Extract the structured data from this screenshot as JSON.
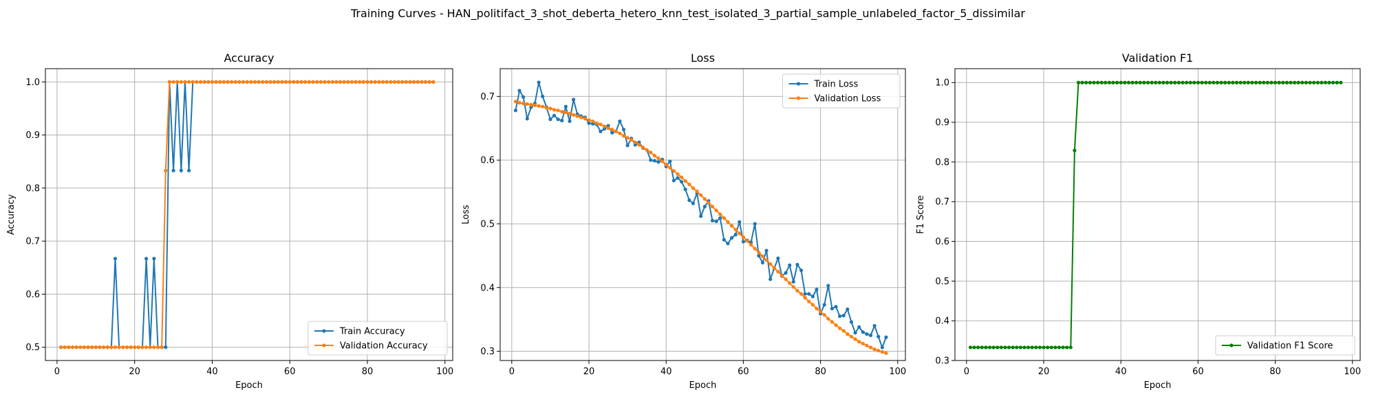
{
  "figure": {
    "suptitle": "Training Curves - HAN_politifact_3_shot_deberta_hetero_knn_test_isolated_3_partial_sample_unlabeled_factor_5_dissimilar"
  },
  "colors": {
    "blue": "#1f77b4",
    "orange": "#ff7f0e",
    "green": "#008000",
    "grid": "#b0b0b0"
  },
  "chart_data": [
    {
      "type": "line",
      "title": "Accuracy",
      "xlabel": "Epoch",
      "ylabel": "Accuracy",
      "xlim": [
        -3,
        102
      ],
      "ylim": [
        0.475,
        1.025
      ],
      "xticks": [
        0,
        20,
        40,
        60,
        80,
        100
      ],
      "yticks": [
        0.5,
        0.6,
        0.7,
        0.8,
        0.9,
        1.0
      ],
      "ytick_labels": [
        "0.5",
        "0.6",
        "0.7",
        "0.8",
        "0.9",
        "1.0"
      ],
      "grid": true,
      "legend_position": "lower-right",
      "x_start": 1,
      "series": [
        {
          "name": "Train Accuracy",
          "color": "#1f77b4",
          "values": [
            0.5,
            0.5,
            0.5,
            0.5,
            0.5,
            0.5,
            0.5,
            0.5,
            0.5,
            0.5,
            0.5,
            0.5,
            0.5,
            0.5,
            0.667,
            0.5,
            0.5,
            0.5,
            0.5,
            0.5,
            0.5,
            0.5,
            0.667,
            0.5,
            0.667,
            0.5,
            0.5,
            0.5,
            1.0,
            0.833,
            1.0,
            0.833,
            1.0,
            0.833,
            1.0,
            1.0,
            1.0,
            1.0,
            1.0,
            1.0,
            1.0,
            1.0,
            1.0,
            1.0,
            1.0,
            1.0,
            1.0,
            1.0,
            1.0,
            1.0,
            1.0,
            1.0,
            1.0,
            1.0,
            1.0,
            1.0,
            1.0,
            1.0,
            1.0,
            1.0,
            1.0,
            1.0,
            1.0,
            1.0,
            1.0,
            1.0,
            1.0,
            1.0,
            1.0,
            1.0,
            1.0,
            1.0,
            1.0,
            1.0,
            1.0,
            1.0,
            1.0,
            1.0,
            1.0,
            1.0,
            1.0,
            1.0,
            1.0,
            1.0,
            1.0,
            1.0,
            1.0,
            1.0,
            1.0,
            1.0,
            1.0,
            1.0,
            1.0,
            1.0,
            1.0,
            1.0,
            1.0
          ]
        },
        {
          "name": "Validation Accuracy",
          "color": "#ff7f0e",
          "values": [
            0.5,
            0.5,
            0.5,
            0.5,
            0.5,
            0.5,
            0.5,
            0.5,
            0.5,
            0.5,
            0.5,
            0.5,
            0.5,
            0.5,
            0.5,
            0.5,
            0.5,
            0.5,
            0.5,
            0.5,
            0.5,
            0.5,
            0.5,
            0.5,
            0.5,
            0.5,
            0.5,
            0.833,
            1.0,
            1.0,
            1.0,
            1.0,
            1.0,
            1.0,
            1.0,
            1.0,
            1.0,
            1.0,
            1.0,
            1.0,
            1.0,
            1.0,
            1.0,
            1.0,
            1.0,
            1.0,
            1.0,
            1.0,
            1.0,
            1.0,
            1.0,
            1.0,
            1.0,
            1.0,
            1.0,
            1.0,
            1.0,
            1.0,
            1.0,
            1.0,
            1.0,
            1.0,
            1.0,
            1.0,
            1.0,
            1.0,
            1.0,
            1.0,
            1.0,
            1.0,
            1.0,
            1.0,
            1.0,
            1.0,
            1.0,
            1.0,
            1.0,
            1.0,
            1.0,
            1.0,
            1.0,
            1.0,
            1.0,
            1.0,
            1.0,
            1.0,
            1.0,
            1.0,
            1.0,
            1.0,
            1.0,
            1.0,
            1.0,
            1.0,
            1.0,
            1.0,
            1.0
          ]
        }
      ]
    },
    {
      "type": "line",
      "title": "Loss",
      "xlabel": "Epoch",
      "ylabel": "Loss",
      "xlim": [
        -3,
        102
      ],
      "ylim": [
        0.2855,
        0.7435
      ],
      "xticks": [
        0,
        20,
        40,
        60,
        80,
        100
      ],
      "yticks": [
        0.3,
        0.4,
        0.5,
        0.6,
        0.7
      ],
      "ytick_labels": [
        "0.3",
        "0.4",
        "0.5",
        "0.6",
        "0.7"
      ],
      "grid": true,
      "legend_position": "upper-right",
      "x_start": 1,
      "series": [
        {
          "name": "Train Loss",
          "color": "#1f77b4",
          "values": [
            0.678,
            0.709,
            0.699,
            0.665,
            0.683,
            0.689,
            0.722,
            0.7,
            0.683,
            0.664,
            0.67,
            0.664,
            0.662,
            0.684,
            0.661,
            0.695,
            0.672,
            0.669,
            0.667,
            0.658,
            0.657,
            0.656,
            0.645,
            0.649,
            0.654,
            0.643,
            0.645,
            0.661,
            0.648,
            0.623,
            0.634,
            0.624,
            0.628,
            0.619,
            0.616,
            0.6,
            0.599,
            0.597,
            0.601,
            0.59,
            0.598,
            0.568,
            0.572,
            0.566,
            0.554,
            0.537,
            0.532,
            0.548,
            0.512,
            0.527,
            0.536,
            0.505,
            0.504,
            0.509,
            0.475,
            0.469,
            0.478,
            0.483,
            0.503,
            0.472,
            0.474,
            0.471,
            0.5,
            0.45,
            0.439,
            0.458,
            0.413,
            0.43,
            0.446,
            0.418,
            0.423,
            0.435,
            0.409,
            0.436,
            0.427,
            0.39,
            0.39,
            0.386,
            0.397,
            0.359,
            0.373,
            0.403,
            0.367,
            0.37,
            0.355,
            0.356,
            0.366,
            0.346,
            0.329,
            0.338,
            0.33,
            0.327,
            0.325,
            0.34,
            0.323,
            0.306,
            0.322
          ]
        },
        {
          "name": "Validation Loss",
          "color": "#ff7f0e",
          "values": [
            0.692,
            0.69,
            0.689,
            0.688,
            0.687,
            0.686,
            0.685,
            0.684,
            0.682,
            0.681,
            0.679,
            0.678,
            0.676,
            0.675,
            0.673,
            0.671,
            0.669,
            0.667,
            0.665,
            0.663,
            0.661,
            0.658,
            0.656,
            0.653,
            0.65,
            0.648,
            0.645,
            0.642,
            0.638,
            0.635,
            0.632,
            0.628,
            0.624,
            0.62,
            0.616,
            0.612,
            0.607,
            0.603,
            0.598,
            0.593,
            0.588,
            0.583,
            0.578,
            0.573,
            0.567,
            0.562,
            0.556,
            0.551,
            0.545,
            0.539,
            0.533,
            0.527,
            0.521,
            0.515,
            0.509,
            0.503,
            0.497,
            0.491,
            0.485,
            0.479,
            0.473,
            0.467,
            0.461,
            0.455,
            0.449,
            0.443,
            0.437,
            0.431,
            0.425,
            0.419,
            0.413,
            0.407,
            0.401,
            0.395,
            0.39,
            0.384,
            0.378,
            0.373,
            0.367,
            0.362,
            0.357,
            0.351,
            0.346,
            0.341,
            0.336,
            0.332,
            0.327,
            0.323,
            0.319,
            0.315,
            0.312,
            0.309,
            0.306,
            0.303,
            0.301,
            0.299,
            0.297
          ]
        }
      ]
    },
    {
      "type": "line",
      "title": "Validation F1",
      "xlabel": "Epoch",
      "ylabel": "F1 Score",
      "xlim": [
        -3,
        102
      ],
      "ylim": [
        0.3,
        1.035
      ],
      "xticks": [
        0,
        20,
        40,
        60,
        80,
        100
      ],
      "yticks": [
        0.3,
        0.4,
        0.5,
        0.6,
        0.7,
        0.8,
        0.9,
        1.0
      ],
      "ytick_labels": [
        "0.3",
        "0.4",
        "0.5",
        "0.6",
        "0.7",
        "0.8",
        "0.9",
        "1.0"
      ],
      "grid": true,
      "legend_position": "lower-right",
      "x_start": 1,
      "series": [
        {
          "name": "Validation F1 Score",
          "color": "#008000",
          "values": [
            0.333,
            0.333,
            0.333,
            0.333,
            0.333,
            0.333,
            0.333,
            0.333,
            0.333,
            0.333,
            0.333,
            0.333,
            0.333,
            0.333,
            0.333,
            0.333,
            0.333,
            0.333,
            0.333,
            0.333,
            0.333,
            0.333,
            0.333,
            0.333,
            0.333,
            0.333,
            0.333,
            0.829,
            1.0,
            1.0,
            1.0,
            1.0,
            1.0,
            1.0,
            1.0,
            1.0,
            1.0,
            1.0,
            1.0,
            1.0,
            1.0,
            1.0,
            1.0,
            1.0,
            1.0,
            1.0,
            1.0,
            1.0,
            1.0,
            1.0,
            1.0,
            1.0,
            1.0,
            1.0,
            1.0,
            1.0,
            1.0,
            1.0,
            1.0,
            1.0,
            1.0,
            1.0,
            1.0,
            1.0,
            1.0,
            1.0,
            1.0,
            1.0,
            1.0,
            1.0,
            1.0,
            1.0,
            1.0,
            1.0,
            1.0,
            1.0,
            1.0,
            1.0,
            1.0,
            1.0,
            1.0,
            1.0,
            1.0,
            1.0,
            1.0,
            1.0,
            1.0,
            1.0,
            1.0,
            1.0,
            1.0,
            1.0,
            1.0,
            1.0,
            1.0,
            1.0,
            1.0
          ]
        }
      ]
    }
  ]
}
